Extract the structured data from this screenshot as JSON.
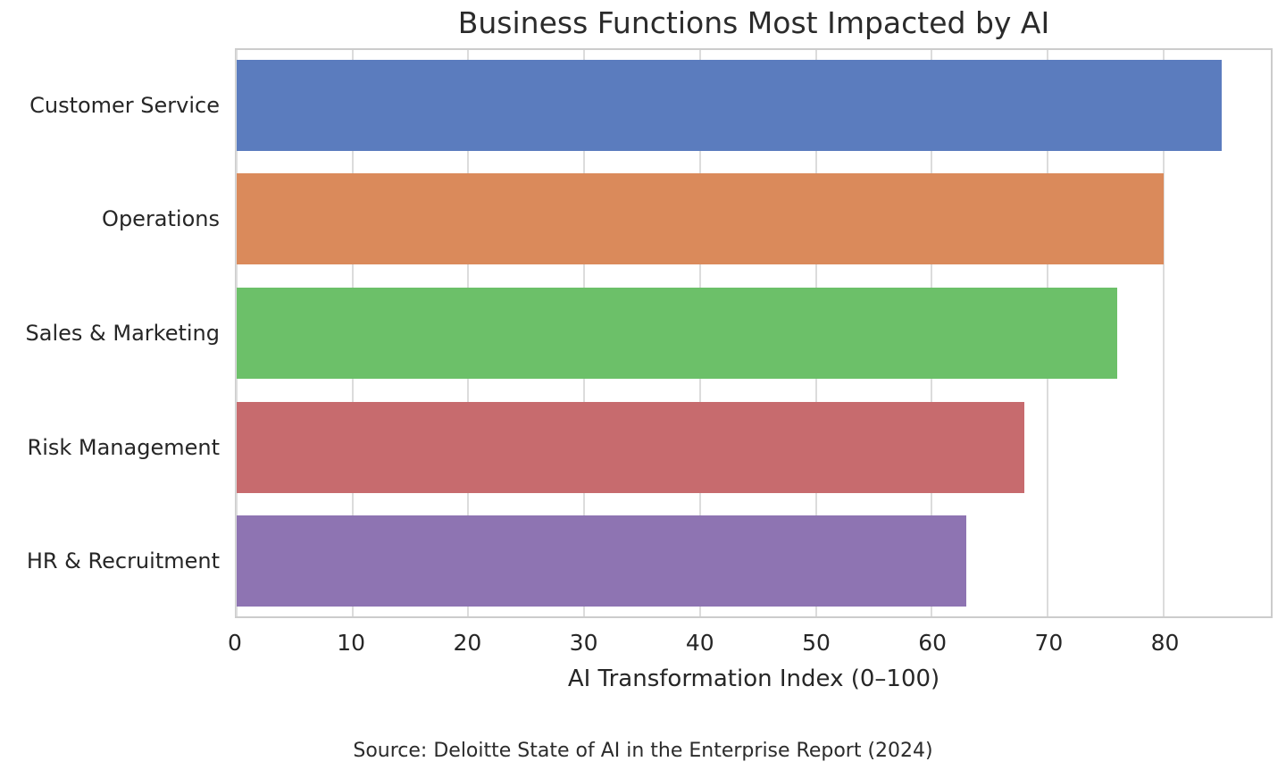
{
  "chart_data": {
    "type": "bar",
    "orientation": "horizontal",
    "title": "Business Functions Most Impacted by AI",
    "categories": [
      "Customer Service",
      "Operations",
      "Sales & Marketing",
      "Risk Management",
      "HR & Recruitment"
    ],
    "values": [
      85,
      80,
      76,
      68,
      63
    ],
    "bar_colors": [
      "#5b7cbe",
      "#da8a5b",
      "#6cc069",
      "#c76b6e",
      "#8e74b2"
    ],
    "xlabel": "AI Transformation Index (0–100)",
    "xticks": [
      0,
      10,
      20,
      30,
      40,
      50,
      60,
      70,
      80
    ],
    "xlim": [
      0,
      89.25
    ],
    "grid": "vertical gridlines at each x tick",
    "legend": "none",
    "bar_fraction_of_band": 0.8,
    "source": "Source: Deloitte State of AI in the Enterprise Report (2024)",
    "style_colors": {
      "grid": "#dcdcdc",
      "spine": "#cccccc",
      "text": "#262626",
      "background": "#ffffff"
    }
  }
}
